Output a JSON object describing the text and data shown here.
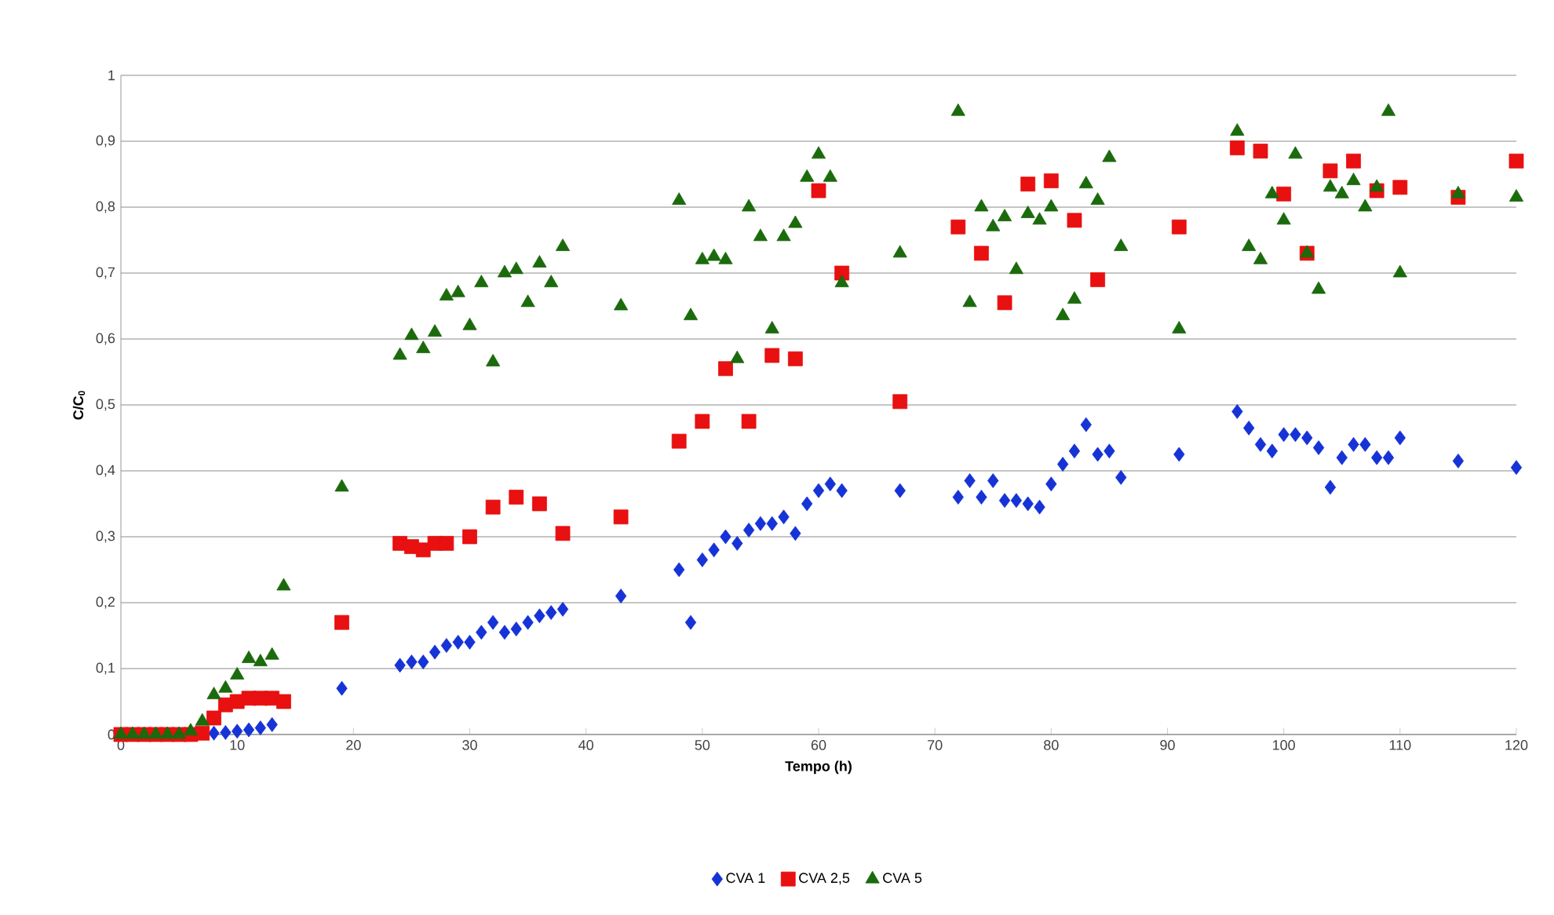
{
  "chart_data": {
    "type": "scatter",
    "xlabel": "Tempo (h)",
    "ylabel": "C/C$_{0}$",
    "xlim": [
      0,
      120
    ],
    "xticks": [
      0,
      10,
      20,
      30,
      40,
      50,
      60,
      70,
      80,
      90,
      100,
      110,
      120
    ],
    "ylim": [
      0,
      1
    ],
    "yticks": [
      0,
      {
        "value": 0.1,
        "label": "0,1"
      },
      {
        "value": 0.2,
        "label": "0,2"
      },
      {
        "value": 0.3,
        "label": "0,3"
      },
      {
        "value": 0.4,
        "label": "0,4"
      },
      {
        "value": 0.5,
        "label": "0,5"
      },
      {
        "value": 0.6,
        "label": "0,6"
      },
      {
        "value": 0.7,
        "label": "0,7"
      },
      {
        "value": 0.8,
        "label": "0,8"
      },
      {
        "value": 0.9,
        "label": "0,9"
      },
      1
    ],
    "grid": "y",
    "legend": "bottom",
    "series": [
      {
        "name": "CVA 1",
        "color": "#1533d6",
        "marker": "diamond",
        "x": [
          8,
          9,
          10,
          11,
          12,
          13,
          19,
          24,
          25,
          26,
          27,
          28,
          29,
          30,
          31,
          32,
          33,
          34,
          35,
          36,
          37,
          38,
          43,
          48,
          49,
          50,
          51,
          52,
          53,
          54,
          55,
          56,
          57,
          58,
          59,
          60,
          61,
          62,
          67,
          72,
          73,
          74,
          75,
          76,
          77,
          78,
          79,
          80,
          81,
          82,
          83,
          84,
          85,
          86,
          91,
          96,
          97,
          98,
          99,
          100,
          101,
          102,
          103,
          104,
          105,
          106,
          107,
          108,
          109,
          110,
          115,
          120
        ],
        "values": [
          0.002,
          0.003,
          0.005,
          0.007,
          0.01,
          0.015,
          0.07,
          0.105,
          0.11,
          0.11,
          0.125,
          0.135,
          0.14,
          0.14,
          0.155,
          0.17,
          0.155,
          0.16,
          0.17,
          0.18,
          0.185,
          0.19,
          0.21,
          0.25,
          0.17,
          0.265,
          0.28,
          0.3,
          0.29,
          0.31,
          0.32,
          0.32,
          0.33,
          0.305,
          0.35,
          0.37,
          0.38,
          0.37,
          0.37,
          0.36,
          0.385,
          0.36,
          0.385,
          0.355,
          0.355,
          0.35,
          0.345,
          0.38,
          0.41,
          0.43,
          0.47,
          0.425,
          0.43,
          0.39,
          0.425,
          0.49,
          0.465,
          0.44,
          0.43,
          0.455,
          0.455,
          0.45,
          0.435,
          0.375,
          0.42,
          0.44,
          0.44,
          0.42,
          0.42,
          0.45,
          0.415,
          0.405
        ]
      },
      {
        "name": "CVA 2,5",
        "color": "#e81010",
        "marker": "square",
        "x": [
          0,
          1,
          2,
          3,
          4,
          5,
          6,
          7,
          8,
          9,
          10,
          11,
          12,
          13,
          14,
          19,
          24,
          25,
          26,
          27,
          28,
          30,
          32,
          34,
          36,
          38,
          43,
          48,
          50,
          52,
          54,
          56,
          58,
          60,
          62,
          67,
          72,
          74,
          76,
          78,
          80,
          82,
          84,
          91,
          96,
          98,
          100,
          102,
          104,
          106,
          108,
          110,
          115,
          120
        ],
        "values": [
          0,
          0,
          0,
          0,
          0,
          0,
          0,
          0.002,
          0.025,
          0.045,
          0.05,
          0.055,
          0.055,
          0.055,
          0.05,
          0.17,
          0.29,
          0.285,
          0.28,
          0.29,
          0.29,
          0.3,
          0.345,
          0.36,
          0.35,
          0.305,
          0.33,
          0.445,
          0.475,
          0.555,
          0.475,
          0.575,
          0.57,
          0.825,
          0.7,
          0.505,
          0.77,
          0.73,
          0.655,
          0.835,
          0.84,
          0.78,
          0.69,
          0.77,
          0.89,
          0.885,
          0.82,
          0.73,
          0.855,
          0.87,
          0.825,
          0.83,
          0.815,
          0.87
        ]
      },
      {
        "name": "CVA 5",
        "color": "#1b6a0c",
        "marker": "triangle",
        "x": [
          0,
          1,
          2,
          3,
          4,
          5,
          6,
          7,
          8,
          9,
          10,
          11,
          12,
          13,
          14,
          19,
          24,
          25,
          26,
          27,
          28,
          29,
          30,
          31,
          32,
          33,
          34,
          35,
          36,
          37,
          38,
          43,
          48,
          49,
          50,
          51,
          52,
          53,
          54,
          55,
          56,
          57,
          58,
          59,
          60,
          61,
          62,
          67,
          72,
          73,
          74,
          75,
          76,
          77,
          78,
          79,
          80,
          81,
          82,
          83,
          84,
          85,
          86,
          91,
          96,
          97,
          98,
          99,
          100,
          101,
          102,
          103,
          104,
          105,
          106,
          107,
          108,
          109,
          110,
          115,
          120
        ],
        "values": [
          0,
          0,
          0,
          0,
          0,
          0,
          0.005,
          0.02,
          0.06,
          0.07,
          0.09,
          0.115,
          0.11,
          0.12,
          0.225,
          0.375,
          0.575,
          0.605,
          0.585,
          0.61,
          0.665,
          0.67,
          0.62,
          0.685,
          0.565,
          0.7,
          0.705,
          0.655,
          0.715,
          0.685,
          0.74,
          0.65,
          0.81,
          0.635,
          0.72,
          0.725,
          0.72,
          0.57,
          0.8,
          0.755,
          0.615,
          0.755,
          0.775,
          0.845,
          0.88,
          0.845,
          0.685,
          0.73,
          0.945,
          0.655,
          0.8,
          0.77,
          0.785,
          0.705,
          0.79,
          0.78,
          0.8,
          0.635,
          0.66,
          0.835,
          0.81,
          0.875,
          0.74,
          0.615,
          0.915,
          0.74,
          0.72,
          0.82,
          0.78,
          0.88,
          0.73,
          0.675,
          0.83,
          0.82,
          0.84,
          0.8,
          0.83,
          0.945,
          0.7,
          0.82,
          0.815
        ]
      }
    ]
  }
}
